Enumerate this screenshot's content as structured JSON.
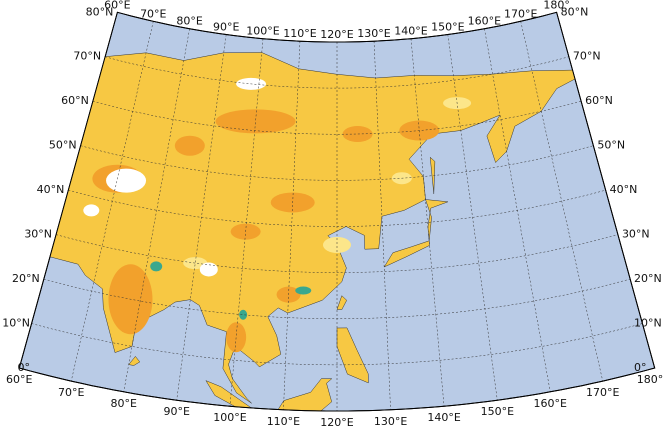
{
  "map": {
    "lon_labels_top": [
      "60°E",
      "70°E",
      "80°E",
      "90°E",
      "100°E",
      "110°E",
      "120°E",
      "130°E",
      "140°E",
      "150°E",
      "160°E",
      "170°E",
      "180°"
    ],
    "lon_labels_bottom": [
      "60°E",
      "70°E",
      "80°E",
      "90°E",
      "100°E",
      "110°E",
      "120°E",
      "130°E",
      "140°E",
      "150°E",
      "160°E",
      "170°E",
      "180°"
    ],
    "lat_labels_left": [
      "0°",
      "10°N",
      "20°N",
      "30°N",
      "40°N",
      "50°N",
      "60°N",
      "70°N",
      "80°N"
    ],
    "lat_labels_right": [
      "0°",
      "10°N",
      "20°N",
      "30°N",
      "40°N",
      "50°N",
      "60°N",
      "70°N",
      "80°N"
    ]
  }
}
